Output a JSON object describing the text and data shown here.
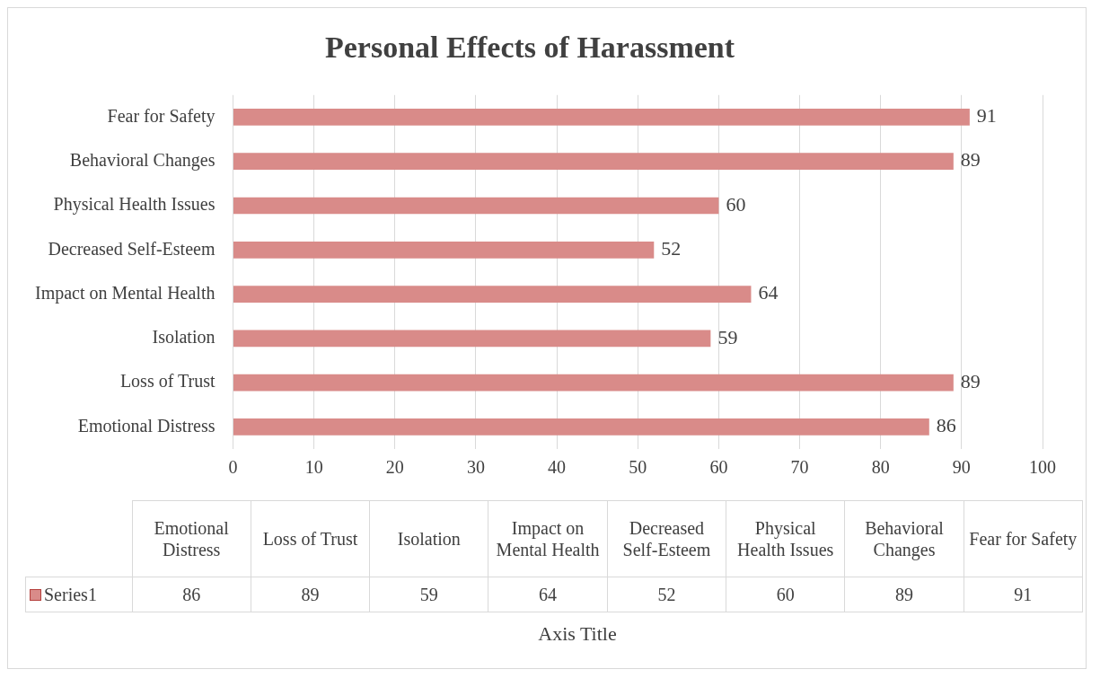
{
  "chart_data": {
    "type": "bar",
    "orientation": "horizontal",
    "title": "Personal Effects of Harassment",
    "categories": [
      "Fear for Safety",
      "Behavioral Changes",
      "Physical Health Issues",
      "Decreased Self-Esteem",
      "Impact on Mental Health",
      "Isolation",
      "Loss of Trust",
      "Emotional Distress"
    ],
    "series": [
      {
        "name": "Series1",
        "color": "#d98b89",
        "values": [
          91,
          89,
          60,
          52,
          64,
          59,
          89,
          86
        ]
      }
    ],
    "annotations": [
      "86",
      "89",
      "59",
      "64",
      "52",
      "60",
      "89",
      "91",
      "Axis Title"
    ],
    "xlim": [
      0,
      100
    ],
    "xticks": [
      0,
      10,
      20,
      30,
      40,
      50,
      60,
      70,
      80,
      90,
      100
    ],
    "grid": "x",
    "data_labels": true
  }
}
